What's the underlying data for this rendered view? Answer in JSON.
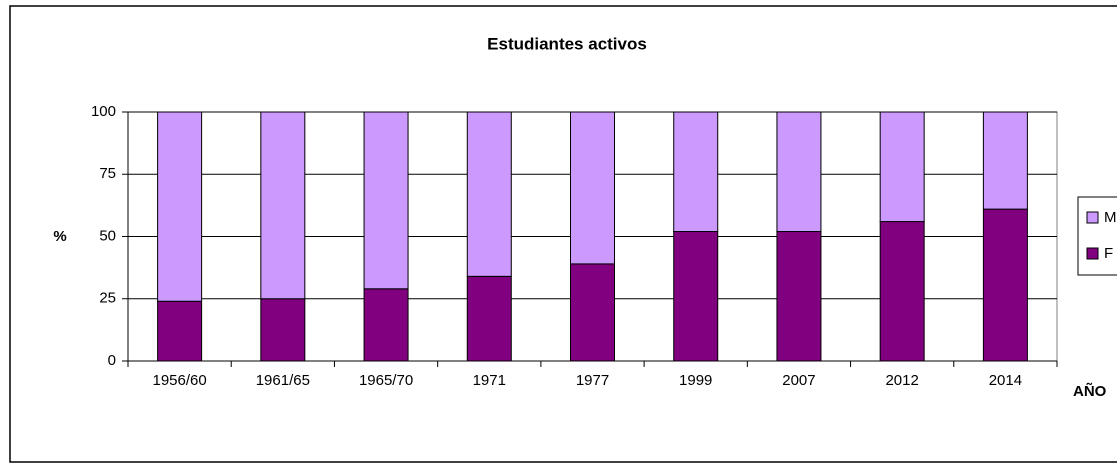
{
  "chart_data": {
    "type": "stacked_bar",
    "title": "Estudiantes activos",
    "x_label": "AÑO",
    "y_label": "%",
    "categories": [
      "1956/60",
      "1961/65",
      "1965/70",
      "1971",
      "1977",
      "1999",
      "2007",
      "2012",
      "2014"
    ],
    "series": [
      {
        "name": "F",
        "color": "#800080",
        "values": [
          24,
          25,
          29,
          34,
          39,
          52,
          52,
          56,
          61
        ]
      },
      {
        "name": "M",
        "color": "#cc99ff",
        "values": [
          76,
          75,
          71,
          66,
          61,
          48,
          48,
          44,
          39
        ]
      }
    ],
    "ylim": [
      0,
      100
    ],
    "yticks": [
      0,
      25,
      50,
      75,
      100
    ],
    "grid": true
  }
}
